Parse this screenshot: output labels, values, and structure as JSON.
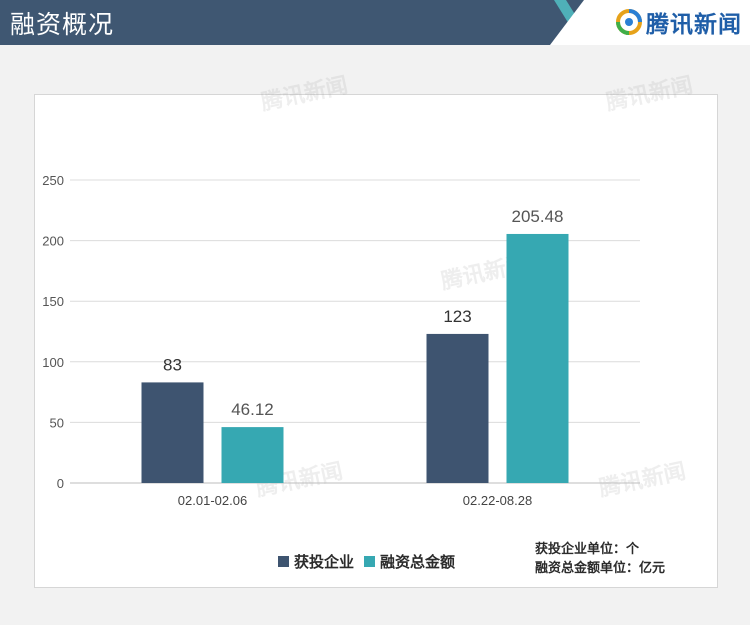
{
  "header": {
    "title": "融资概况",
    "brand": "腾讯新闻",
    "brand_icon": "tencent-news-logo-icon",
    "bar_color": "#3f5772",
    "accent_color": "#4fb0b8",
    "brand_color": "#1f5ea8"
  },
  "chart_data": {
    "type": "bar",
    "categories": [
      "02.01-02.06",
      "02.22-08.28"
    ],
    "series": [
      {
        "name": "获投企业",
        "values": [
          83,
          123
        ],
        "labels": [
          "83",
          "123"
        ],
        "color": "#3e5470"
      },
      {
        "name": "融资总金额",
        "values": [
          46.12,
          205.48
        ],
        "labels": [
          "46.12",
          "205.48"
        ],
        "color": "#36a8b2"
      }
    ],
    "yticks": [
      "0",
      "50",
      "100",
      "150",
      "200",
      "250"
    ],
    "ylim": [
      0,
      250
    ],
    "grid": true,
    "legend_position": "bottom"
  },
  "legend": {
    "items": [
      {
        "label": "获投企业",
        "color": "#3e5470"
      },
      {
        "label": "融资总金额",
        "color": "#36a8b2"
      }
    ]
  },
  "units": {
    "line1": "获投企业单位：个",
    "line2": "融资总金额单位：亿元"
  },
  "watermark": "腾讯新闻"
}
